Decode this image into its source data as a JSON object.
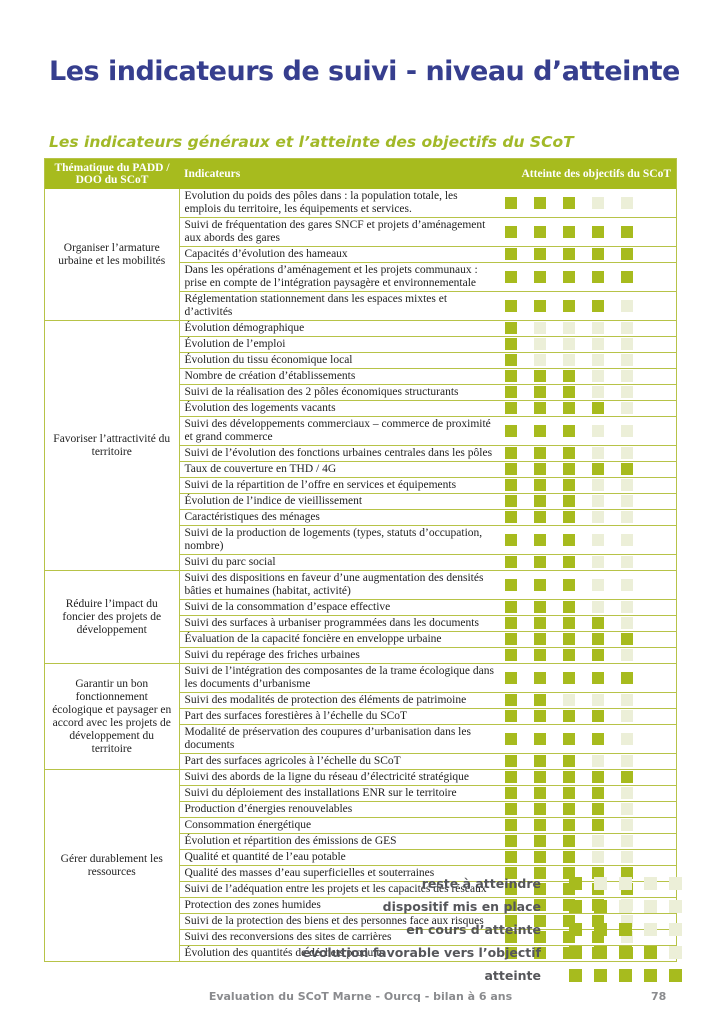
{
  "page": {
    "title": "Les indicateurs de suivi - niveau d’atteinte",
    "subtitle": "Les indicateurs généraux et l’atteinte des objectifs du SCoT",
    "footer_text": "Evaluation du SCoT Marne - Ourcq - bilan à 6 ans",
    "page_number": "78"
  },
  "colors": {
    "title_blue": "#363e8e",
    "accent_olive": "#a7bb1e",
    "square_off": "#ecefd8",
    "table_border": "#b7c348",
    "legend_text": "#55565a",
    "footer_gray": "#8a8b8e"
  },
  "table": {
    "scale_max": 5,
    "headers": {
      "theme": "Thématique du PADD / DOO du SCoT",
      "indicators": "Indicateurs",
      "attainment": "Atteinte des objectifs du SCoT"
    },
    "groups": [
      {
        "theme": "Organiser l’armature urbaine et les mobilités",
        "rows": [
          {
            "label": "Evolution du poids des pôles dans : la population totale, les emplois du territoire, les équipements et services.",
            "level": 3
          },
          {
            "label": "Suivi de fréquentation des gares SNCF et projets d’aménagement aux abords des gares",
            "level": 5
          },
          {
            "label": "Capacités d’évolution des hameaux",
            "level": 5
          },
          {
            "label": "Dans les opérations d’aménagement et les projets communaux : prise en compte de l’intégration paysagère et environnementale",
            "level": 5
          },
          {
            "label": "Réglementation stationnement dans les espaces mixtes et d’activités",
            "level": 4
          }
        ]
      },
      {
        "theme": "Favoriser l’attractivité du territoire",
        "rows": [
          {
            "label": "Évolution démographique",
            "level": 1
          },
          {
            "label": "Évolution de l’emploi",
            "level": 1
          },
          {
            "label": "Évolution du tissu économique local",
            "level": 1
          },
          {
            "label": "Nombre de création d’établissements",
            "level": 3
          },
          {
            "label": "Suivi de la réalisation des 2 pôles économiques structurants",
            "level": 3
          },
          {
            "label": "Évolution des logements vacants",
            "level": 4
          },
          {
            "label": "Suivi des développements commerciaux – commerce de proximité et grand commerce",
            "level": 3
          },
          {
            "label": "Suivi de l’évolution des fonctions urbaines centrales dans les pôles",
            "level": 3
          },
          {
            "label": "Taux de couverture en THD / 4G",
            "level": 5
          },
          {
            "label": "Suivi de la répartition de l’offre en services et équipements",
            "level": 3
          },
          {
            "label": "Évolution de l’indice de vieillissement",
            "level": 3
          },
          {
            "label": "Caractéristiques des ménages",
            "level": 3
          },
          {
            "label": "Suivi de la production de logements (types, statuts d’occupation, nombre)",
            "level": 3
          },
          {
            "label": "Suivi du parc social",
            "level": 3
          }
        ]
      },
      {
        "theme": "Réduire l’impact du foncier des projets de développement",
        "rows": [
          {
            "label": "Suivi des dispositions en faveur d’une augmentation des densités bâties et humaines (habitat, activité)",
            "level": 3
          },
          {
            "label": "Suivi de la consommation d’espace effective",
            "level": 3
          },
          {
            "label": "Suivi des surfaces à urbaniser programmées dans les documents",
            "level": 4
          },
          {
            "label": "Évaluation de la capacité foncière en enveloppe urbaine",
            "level": 5
          },
          {
            "label": "Suivi du repérage des friches urbaines",
            "level": 4
          }
        ]
      },
      {
        "theme": "Garantir un bon fonctionnement écologique et paysager en accord avec les projets de développement du territoire",
        "rows": [
          {
            "label": "Suivi de l’intégration des composantes de la trame écologique dans les documents d’urbanisme",
            "level": 5
          },
          {
            "label": "Suivi des modalités de protection des éléments de patrimoine",
            "level": 2
          },
          {
            "label": "Part des surfaces forestières à l’échelle du SCoT",
            "level": 4
          },
          {
            "label": "Modalité de préservation des coupures d’urbanisation dans les documents",
            "level": 4
          },
          {
            "label": "Part des surfaces agricoles à l’échelle du SCoT",
            "level": 3
          }
        ]
      },
      {
        "theme": "Gérer durablement les ressources",
        "rows": [
          {
            "label": "Suivi des abords de la ligne du réseau d’électricité stratégique",
            "level": 5
          },
          {
            "label": "Suivi du déploiement des installations ENR sur le territoire",
            "level": 4
          },
          {
            "label": "Production d’énergies renouvelables",
            "level": 4
          },
          {
            "label": "Consommation énergétique",
            "level": 4
          },
          {
            "label": "Évolution et répartition des émissions de GES",
            "level": 3
          },
          {
            "label": "Qualité et quantité de l’eau potable",
            "level": 3
          },
          {
            "label": "Qualité des masses d’eau superficielles et souterraines",
            "level": 5
          },
          {
            "label": "Suivi de l’adéquation entre les projets et les capacités des réseaux",
            "level": 5
          },
          {
            "label": "Protection des zones humides",
            "level": 4
          },
          {
            "label": "Suivi de la protection des biens et des personnes face aux risques",
            "level": 4
          },
          {
            "label": "Suivi des reconversions des sites de carrières",
            "level": 4
          },
          {
            "label": "Évolution des quantités de déchets produits",
            "level": 5
          }
        ]
      }
    ]
  },
  "legend": [
    {
      "label": "reste à atteindre",
      "level": 1
    },
    {
      "label": "dispositif mis en place",
      "level": 2
    },
    {
      "label": "en cours d’atteinte",
      "level": 3
    },
    {
      "label": "évolution favorable vers l’objectif",
      "level": 4
    },
    {
      "label": "atteinte",
      "level": 5
    }
  ]
}
